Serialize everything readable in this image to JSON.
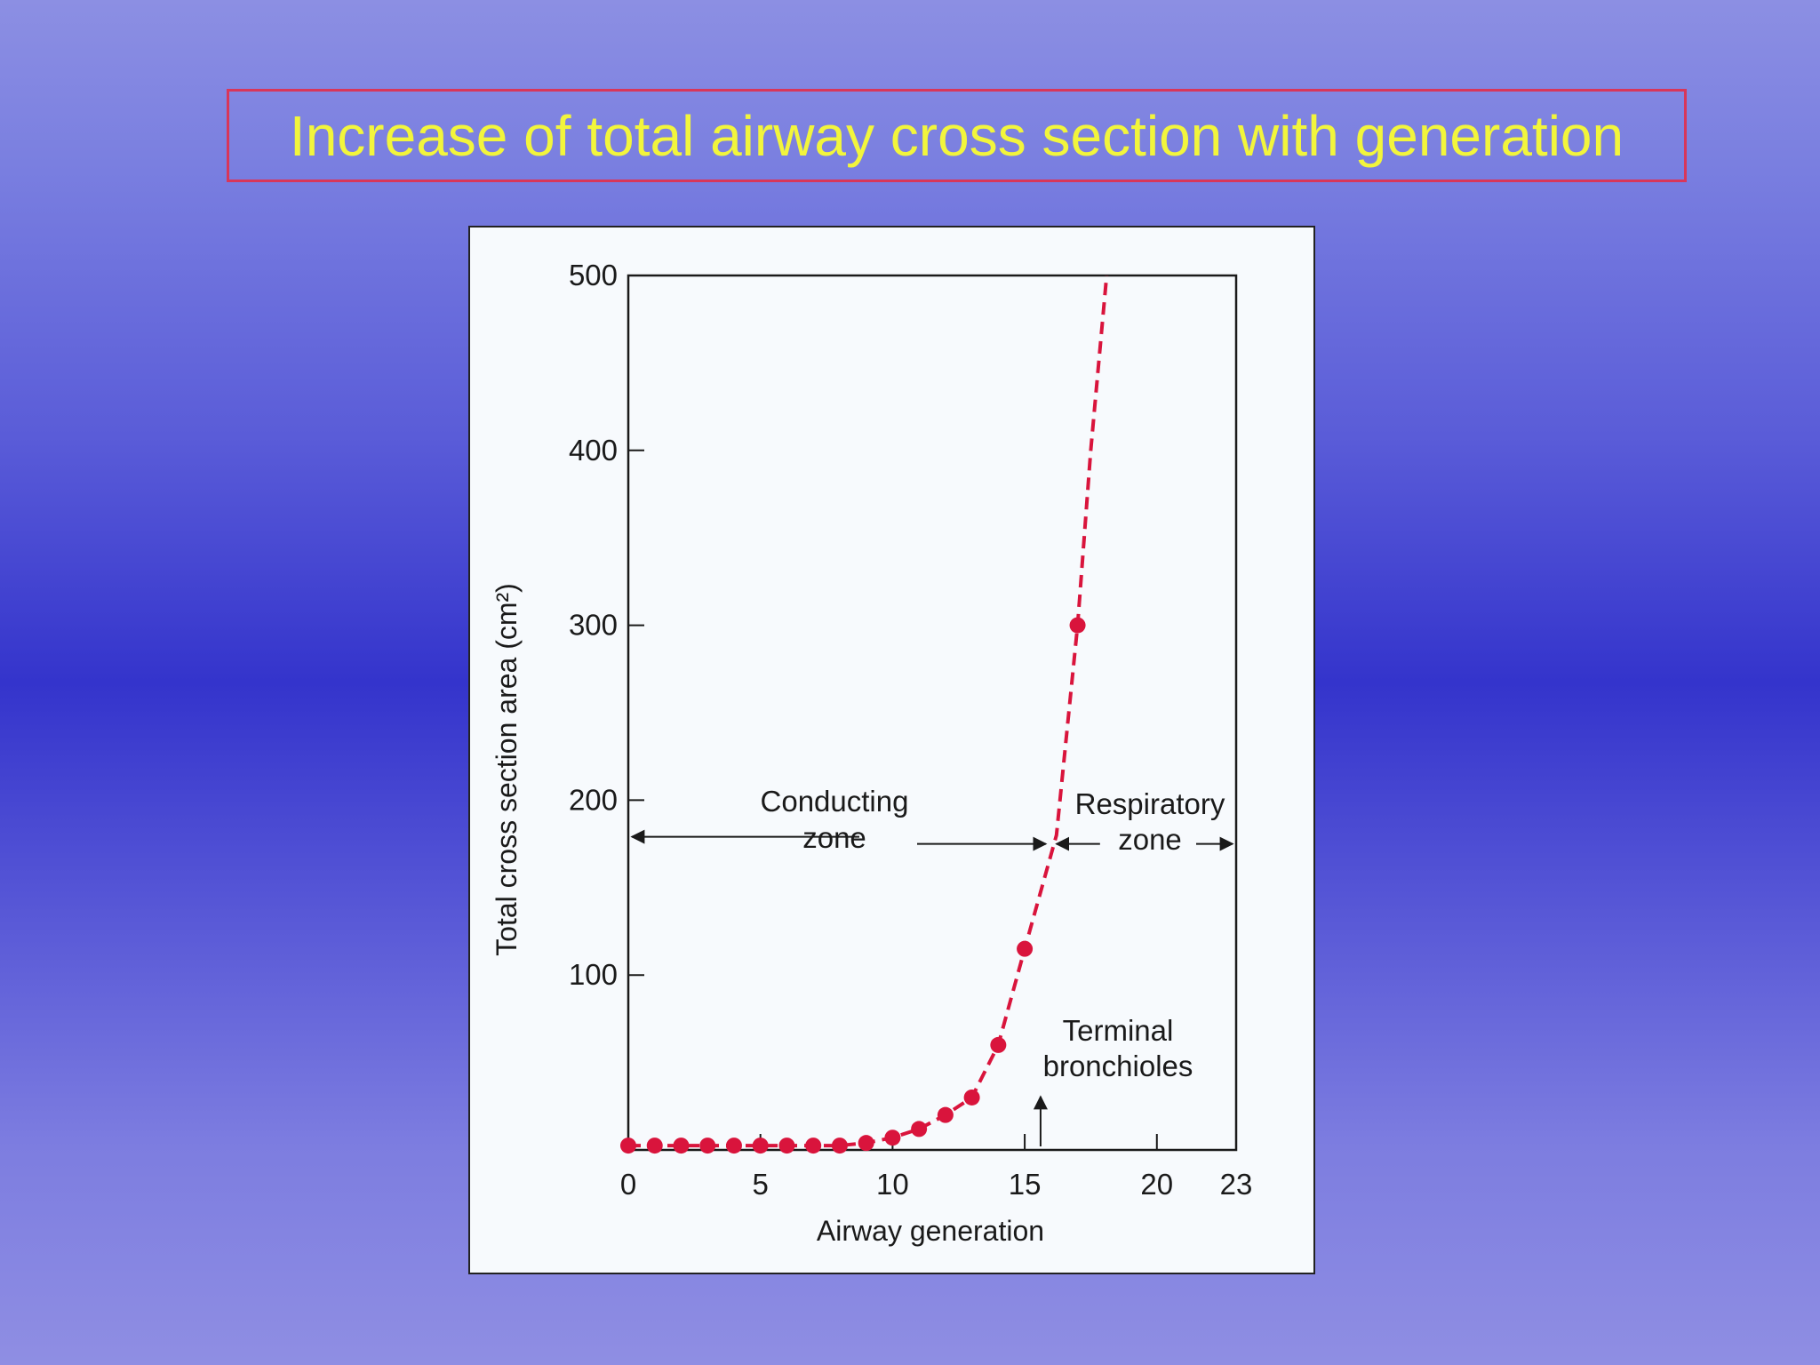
{
  "slide": {
    "title": "Increase of total airway cross section with generation",
    "title_color": "#f2f53c",
    "title_border_color": "#d8365a"
  },
  "chart_data": {
    "type": "line",
    "title": "",
    "xlabel": "Airway generation",
    "ylabel": "Total cross section area (cm²)",
    "x_ticks": [
      0,
      5,
      10,
      15,
      20,
      23
    ],
    "y_ticks": [
      100,
      200,
      300,
      400,
      500
    ],
    "xlim": [
      0,
      23
    ],
    "ylim": [
      0,
      500
    ],
    "line_style": "dashed",
    "color": "#d9143c",
    "series": [
      {
        "x": [
          0,
          1,
          2,
          3,
          4,
          5,
          6,
          7,
          8,
          9,
          10,
          11,
          12,
          13,
          14,
          15,
          17
        ],
        "y": [
          2.5,
          2.5,
          2.5,
          2.5,
          2.5,
          2.5,
          2.5,
          2.5,
          2.5,
          4,
          7,
          12,
          20,
          30,
          60,
          115,
          300
        ]
      }
    ],
    "curve_extension": [
      {
        "x": 16.2,
        "y": 180
      },
      {
        "x": 17.5,
        "y": 400
      },
      {
        "x": 18.1,
        "y": 500
      }
    ],
    "annotations": {
      "conducting_line1": "Conducting",
      "conducting_line2": "zone",
      "respiratory_line1": "Respiratory",
      "respiratory_line2": "zone",
      "terminal_line1": "Terminal",
      "terminal_line2": "bronchioles"
    },
    "zone_boundary_x": 16,
    "terminal_arrow_x": 15.6
  }
}
